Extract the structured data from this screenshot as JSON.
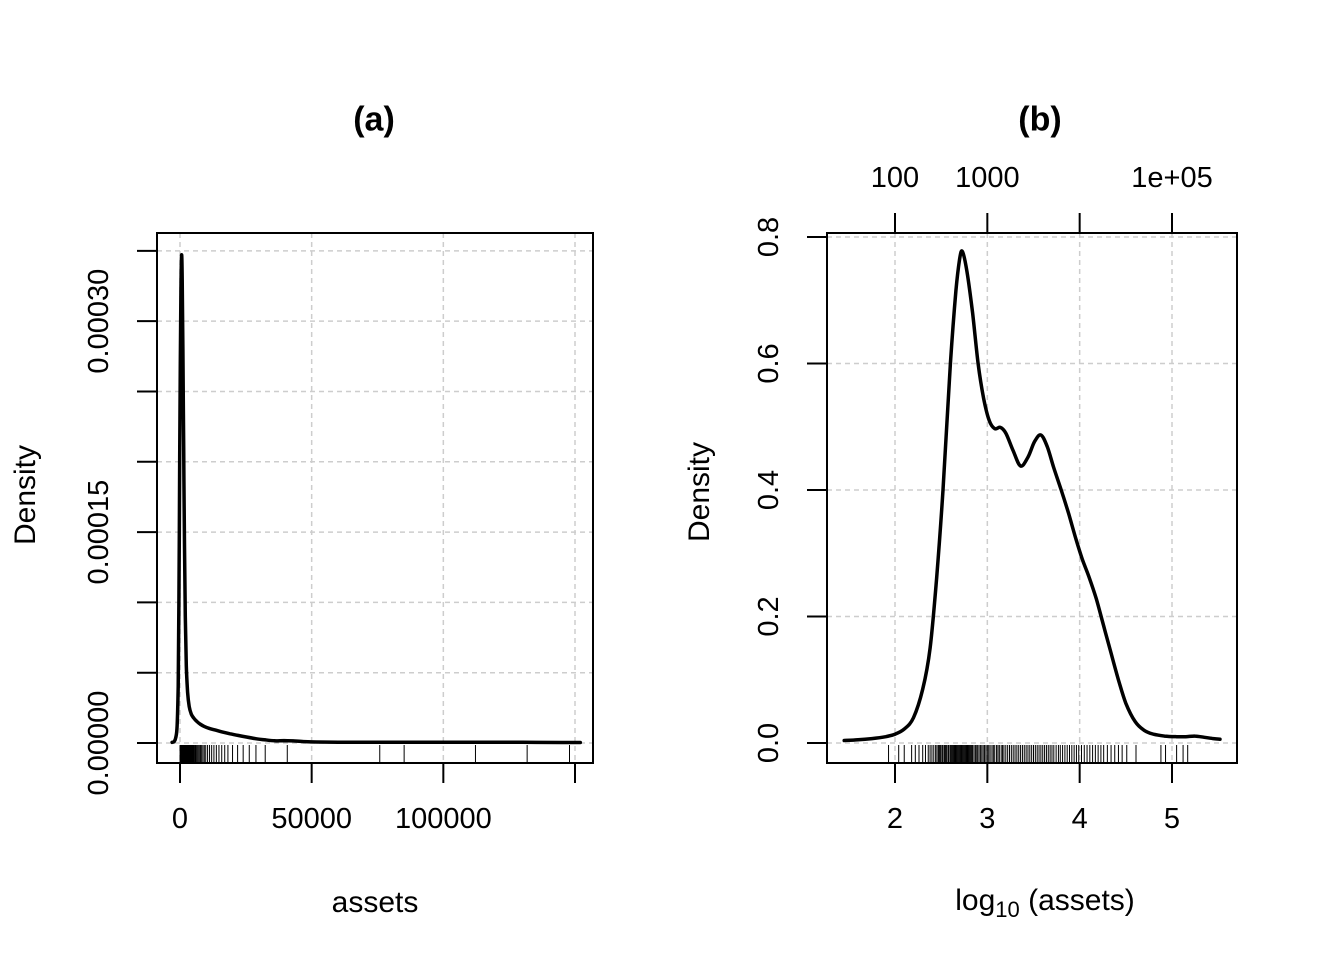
{
  "figure": {
    "background": "#ffffff",
    "text_color": "#000000",
    "curve_color": "#000000",
    "grid_color": "#cdcdcd",
    "box_color": "#000000"
  },
  "chart_data": [
    {
      "type": "line",
      "subtype": "kernel-density-with-rug",
      "title": "(a)",
      "xlabel": "assets",
      "ylabel": "Density",
      "xlim": [
        -8734,
        156836
      ],
      "ylim": [
        -1.42e-05,
        0.0003627
      ],
      "grid": true,
      "x_ticks": [
        {
          "v": 0,
          "label": "0"
        },
        {
          "v": 50000,
          "label": "50000"
        },
        {
          "v": 100000,
          "label": "100000"
        },
        {
          "v": 150000,
          "label": ""
        }
      ],
      "y_ticks": [
        {
          "v": 0,
          "label": "0.00000"
        },
        {
          "v": 5e-05,
          "label": ""
        },
        {
          "v": 0.0001,
          "label": ""
        },
        {
          "v": 0.00015,
          "label": "0.00015"
        },
        {
          "v": 0.0002,
          "label": ""
        },
        {
          "v": 0.00025,
          "label": ""
        },
        {
          "v": 0.0003,
          "label": "0.00030"
        },
        {
          "v": 0.00035,
          "label": ""
        }
      ],
      "curve": [
        [
          -3000,
          5e-07
        ],
        [
          -2200,
          1e-06
        ],
        [
          -1600,
          4e-06
        ],
        [
          -1100,
          1.2e-05
        ],
        [
          -700,
          4e-05
        ],
        [
          -400,
          0.0001
        ],
        [
          -150,
          0.00019
        ],
        [
          100,
          0.00027
        ],
        [
          350,
          0.00032
        ],
        [
          600,
          0.000347
        ],
        [
          850,
          0.00033
        ],
        [
          1100,
          0.00028
        ],
        [
          1400,
          0.00021
        ],
        [
          1700,
          0.00014
        ],
        [
          2000,
          9e-05
        ],
        [
          2400,
          5.5e-05
        ],
        [
          2900,
          3.6e-05
        ],
        [
          3500,
          2.6e-05
        ],
        [
          4300,
          2.05e-05
        ],
        [
          5200,
          1.78e-05
        ],
        [
          6300,
          1.55e-05
        ],
        [
          7600,
          1.35e-05
        ],
        [
          9200,
          1.18e-05
        ],
        [
          11000,
          1.05e-05
        ],
        [
          13500,
          9.2e-06
        ],
        [
          16000,
          7.9e-06
        ],
        [
          19000,
          6.6e-06
        ],
        [
          22000,
          5.4e-06
        ],
        [
          25500,
          4.2e-06
        ],
        [
          29000,
          3e-06
        ],
        [
          32500,
          2.2e-06
        ],
        [
          36000,
          1.6e-06
        ],
        [
          39500,
          1.7e-06
        ],
        [
          43000,
          1.5e-06
        ],
        [
          47000,
          1e-06
        ],
        [
          52000,
          7e-07
        ],
        [
          60000,
          6e-07
        ],
        [
          70000,
          6e-07
        ],
        [
          85000,
          6e-07
        ],
        [
          100000,
          6e-07
        ],
        [
          115000,
          5e-07
        ],
        [
          130000,
          5e-07
        ],
        [
          145000,
          4e-07
        ],
        [
          152000,
          4e-07
        ]
      ],
      "rug": [
        85,
        110,
        126,
        151,
        166,
        182,
        200,
        214,
        229,
        240,
        251,
        263,
        275,
        285,
        295,
        302,
        309,
        316,
        327,
        339,
        347,
        355,
        363,
        376,
        385,
        398,
        407,
        417,
        427,
        437,
        447,
        457,
        468,
        479,
        490,
        501,
        513,
        525,
        537,
        550,
        562,
        575,
        589,
        603,
        617,
        631,
        646,
        661,
        676,
        692,
        716,
        741,
        759,
        785,
        813,
        841,
        871,
        902,
        933,
        966,
        1000,
        1035,
        1072,
        1122,
        1161,
        1202,
        1259,
        1303,
        1349,
        1413,
        1462,
        1514,
        1585,
        1660,
        1738,
        1820,
        1905,
        1995,
        2089,
        2188,
        2291,
        2399,
        2512,
        2630,
        2754,
        2884,
        3020,
        3162,
        3311,
        3467,
        3631,
        3802,
        3981,
        4169,
        4365,
        4571,
        4786,
        5012,
        5248,
        5559,
        5888,
        6166,
        6531,
        6918,
        7328,
        7762,
        8222,
        8710,
        9226,
        9772,
        10471,
        11220,
        12023,
        12882,
        13804,
        14791,
        15849,
        16982,
        18197,
        19953,
        21878,
        23988,
        26303,
        28840,
        32359,
        40738,
        75858,
        85114,
        112202,
        131826,
        147911
      ]
    },
    {
      "type": "line",
      "subtype": "kernel-density-with-rug",
      "title": "(b)",
      "xlabel_parts": {
        "prefix": "log",
        "sub": "10",
        "suffix": " (assets)"
      },
      "ylabel": "Density",
      "xlim": [
        1.2635,
        5.704
      ],
      "ylim": [
        -0.0316,
        0.8063
      ],
      "grid": true,
      "x_ticks": [
        {
          "v": 2,
          "label": "2"
        },
        {
          "v": 3,
          "label": "3"
        },
        {
          "v": 4,
          "label": "4"
        },
        {
          "v": 5,
          "label": "5"
        }
      ],
      "top_ticks": [
        {
          "v": 2,
          "label": "100"
        },
        {
          "v": 3,
          "label": "1000"
        },
        {
          "v": 4,
          "label": ""
        },
        {
          "v": 5,
          "label": "1e+05"
        }
      ],
      "y_ticks": [
        {
          "v": 0,
          "label": "0.0"
        },
        {
          "v": 0.2,
          "label": "0.2"
        },
        {
          "v": 0.4,
          "label": "0.4"
        },
        {
          "v": 0.6,
          "label": "0.6"
        },
        {
          "v": 0.8,
          "label": "0.8"
        }
      ],
      "curve": [
        [
          1.45,
          0.004
        ],
        [
          1.6,
          0.005
        ],
        [
          1.75,
          0.007
        ],
        [
          1.9,
          0.01
        ],
        [
          2.0,
          0.014
        ],
        [
          2.1,
          0.022
        ],
        [
          2.2,
          0.04
        ],
        [
          2.3,
          0.085
        ],
        [
          2.38,
          0.15
        ],
        [
          2.45,
          0.26
        ],
        [
          2.52,
          0.4
        ],
        [
          2.6,
          0.6
        ],
        [
          2.66,
          0.715
        ],
        [
          2.7,
          0.765
        ],
        [
          2.73,
          0.777
        ],
        [
          2.78,
          0.745
        ],
        [
          2.84,
          0.68
        ],
        [
          2.9,
          0.6
        ],
        [
          2.96,
          0.545
        ],
        [
          3.02,
          0.51
        ],
        [
          3.08,
          0.497
        ],
        [
          3.14,
          0.499
        ],
        [
          3.2,
          0.49
        ],
        [
          3.28,
          0.462
        ],
        [
          3.36,
          0.438
        ],
        [
          3.44,
          0.452
        ],
        [
          3.51,
          0.476
        ],
        [
          3.58,
          0.487
        ],
        [
          3.65,
          0.468
        ],
        [
          3.72,
          0.435
        ],
        [
          3.8,
          0.4
        ],
        [
          3.88,
          0.363
        ],
        [
          3.96,
          0.322
        ],
        [
          4.03,
          0.29
        ],
        [
          4.1,
          0.263
        ],
        [
          4.18,
          0.228
        ],
        [
          4.26,
          0.185
        ],
        [
          4.34,
          0.142
        ],
        [
          4.42,
          0.1
        ],
        [
          4.5,
          0.063
        ],
        [
          4.6,
          0.034
        ],
        [
          4.7,
          0.02
        ],
        [
          4.8,
          0.014
        ],
        [
          4.92,
          0.011
        ],
        [
          5.05,
          0.01
        ],
        [
          5.15,
          0.01
        ],
        [
          5.25,
          0.011
        ],
        [
          5.35,
          0.009
        ],
        [
          5.45,
          0.007
        ],
        [
          5.52,
          0.006
        ]
      ],
      "rug": [
        1.93,
        2.04,
        2.1,
        2.18,
        2.22,
        2.26,
        2.3,
        2.33,
        2.36,
        2.38,
        2.4,
        2.42,
        2.44,
        2.455,
        2.47,
        2.48,
        2.49,
        2.5,
        2.515,
        2.53,
        2.54,
        2.55,
        2.56,
        2.575,
        2.585,
        2.6,
        2.61,
        2.62,
        2.63,
        2.64,
        2.65,
        2.66,
        2.67,
        2.68,
        2.69,
        2.7,
        2.71,
        2.72,
        2.73,
        2.74,
        2.75,
        2.76,
        2.77,
        2.78,
        2.79,
        2.8,
        2.81,
        2.82,
        2.83,
        2.84,
        2.855,
        2.87,
        2.88,
        2.895,
        2.91,
        2.925,
        2.94,
        2.955,
        2.97,
        2.985,
        3.0,
        3.015,
        3.03,
        3.05,
        3.065,
        3.08,
        3.1,
        3.115,
        3.13,
        3.15,
        3.165,
        3.18,
        3.2,
        3.22,
        3.24,
        3.26,
        3.28,
        3.3,
        3.32,
        3.34,
        3.36,
        3.38,
        3.4,
        3.42,
        3.44,
        3.46,
        3.48,
        3.5,
        3.52,
        3.54,
        3.56,
        3.58,
        3.6,
        3.62,
        3.64,
        3.66,
        3.68,
        3.7,
        3.72,
        3.745,
        3.77,
        3.79,
        3.815,
        3.84,
        3.865,
        3.89,
        3.915,
        3.94,
        3.965,
        3.99,
        4.02,
        4.05,
        4.08,
        4.11,
        4.14,
        4.17,
        4.2,
        4.23,
        4.26,
        4.3,
        4.34,
        4.38,
        4.42,
        4.46,
        4.51,
        4.61,
        4.88,
        4.93,
        5.05,
        5.12,
        5.17
      ]
    }
  ]
}
